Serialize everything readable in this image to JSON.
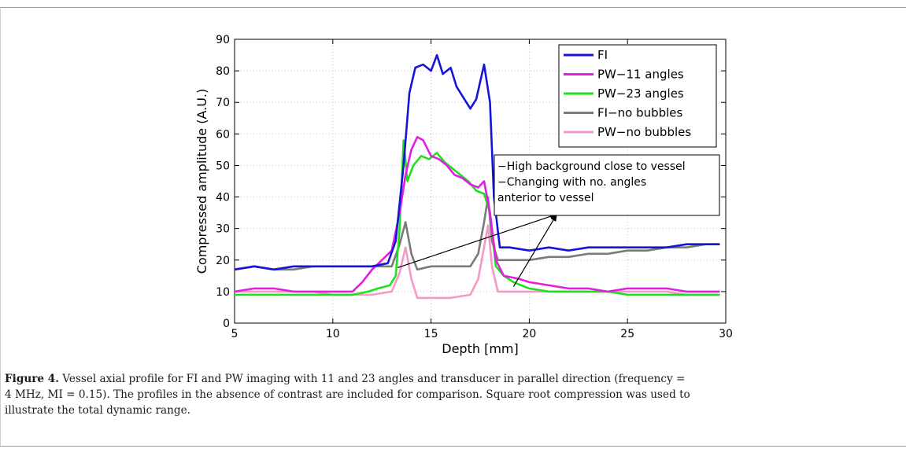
{
  "chart_data": {
    "type": "line",
    "xlabel": "Depth [mm]",
    "ylabel": "Compressed amplitude (A.U.)",
    "xlim": [
      5,
      30
    ],
    "ylim": [
      0,
      90
    ],
    "xticks": [
      5,
      10,
      15,
      20,
      25,
      30
    ],
    "yticks": [
      0,
      10,
      20,
      30,
      40,
      50,
      60,
      70,
      80,
      90
    ],
    "grid": "dotted",
    "legend_position": "top-right",
    "series": [
      {
        "name": "FI",
        "color": "#1515d8",
        "points": [
          [
            5,
            17
          ],
          [
            6,
            18
          ],
          [
            7,
            17
          ],
          [
            8,
            18
          ],
          [
            9,
            18
          ],
          [
            10,
            18
          ],
          [
            11,
            18
          ],
          [
            12,
            18
          ],
          [
            12.8,
            19
          ],
          [
            13.2,
            26
          ],
          [
            13.6,
            50
          ],
          [
            13.9,
            73
          ],
          [
            14.2,
            81
          ],
          [
            14.6,
            82
          ],
          [
            15.0,
            80
          ],
          [
            15.3,
            85
          ],
          [
            15.6,
            79
          ],
          [
            16.0,
            81
          ],
          [
            16.3,
            75
          ],
          [
            16.6,
            72
          ],
          [
            17.0,
            68
          ],
          [
            17.3,
            71
          ],
          [
            17.7,
            82
          ],
          [
            18.0,
            70
          ],
          [
            18.2,
            40
          ],
          [
            18.5,
            24
          ],
          [
            19,
            24
          ],
          [
            20,
            23
          ],
          [
            21,
            24
          ],
          [
            22,
            23
          ],
          [
            23,
            24
          ],
          [
            24,
            24
          ],
          [
            25,
            24
          ],
          [
            26,
            24
          ],
          [
            27,
            24
          ],
          [
            28,
            25
          ],
          [
            29,
            25
          ],
          [
            29.7,
            25
          ]
        ]
      },
      {
        "name": "PW−11 angles",
        "color": "#e11ee1",
        "points": [
          [
            5,
            10
          ],
          [
            6,
            11
          ],
          [
            7,
            11
          ],
          [
            8,
            10
          ],
          [
            9,
            10
          ],
          [
            10,
            10
          ],
          [
            11,
            10
          ],
          [
            11.5,
            13
          ],
          [
            12,
            17
          ],
          [
            12.5,
            20
          ],
          [
            13.0,
            23
          ],
          [
            13.4,
            35
          ],
          [
            13.7,
            47
          ],
          [
            14.0,
            55
          ],
          [
            14.3,
            59
          ],
          [
            14.6,
            58
          ],
          [
            15.0,
            53
          ],
          [
            15.4,
            52
          ],
          [
            15.8,
            50
          ],
          [
            16.2,
            47
          ],
          [
            16.6,
            46
          ],
          [
            17.0,
            44
          ],
          [
            17.4,
            43
          ],
          [
            17.7,
            45
          ],
          [
            18.0,
            35
          ],
          [
            18.3,
            20
          ],
          [
            18.7,
            15
          ],
          [
            19.5,
            14
          ],
          [
            20,
            13
          ],
          [
            21,
            12
          ],
          [
            22,
            11
          ],
          [
            23,
            11
          ],
          [
            24,
            10
          ],
          [
            25,
            11
          ],
          [
            26,
            11
          ],
          [
            27,
            11
          ],
          [
            28,
            10
          ],
          [
            29,
            10
          ],
          [
            29.7,
            10
          ]
        ]
      },
      {
        "name": "PW−23 angles",
        "color": "#1ee01e",
        "points": [
          [
            5,
            9
          ],
          [
            6,
            9
          ],
          [
            7,
            9
          ],
          [
            8,
            9
          ],
          [
            9,
            9
          ],
          [
            10,
            9
          ],
          [
            11,
            9
          ],
          [
            11.8,
            10
          ],
          [
            12.3,
            11
          ],
          [
            12.9,
            12
          ],
          [
            13.2,
            15
          ],
          [
            13.4,
            30
          ],
          [
            13.6,
            58
          ],
          [
            13.8,
            45
          ],
          [
            14.1,
            50
          ],
          [
            14.5,
            53
          ],
          [
            14.9,
            52
          ],
          [
            15.3,
            54
          ],
          [
            15.7,
            51
          ],
          [
            16.1,
            49
          ],
          [
            16.5,
            47
          ],
          [
            16.9,
            45
          ],
          [
            17.3,
            42
          ],
          [
            17.7,
            41
          ],
          [
            18.0,
            35
          ],
          [
            18.3,
            18
          ],
          [
            18.7,
            15
          ],
          [
            19.2,
            13
          ],
          [
            20,
            11
          ],
          [
            21,
            10
          ],
          [
            22,
            10
          ],
          [
            23,
            10
          ],
          [
            24,
            10
          ],
          [
            25,
            9
          ],
          [
            26,
            9
          ],
          [
            27,
            9
          ],
          [
            28,
            9
          ],
          [
            29,
            9
          ],
          [
            29.7,
            9
          ]
        ]
      },
      {
        "name": "FI−no bubbles",
        "color": "#7a7a7a",
        "points": [
          [
            5,
            17
          ],
          [
            6,
            18
          ],
          [
            7,
            17
          ],
          [
            8,
            17
          ],
          [
            9,
            18
          ],
          [
            10,
            18
          ],
          [
            11,
            18
          ],
          [
            12,
            18
          ],
          [
            13,
            18
          ],
          [
            13.4,
            25
          ],
          [
            13.7,
            32
          ],
          [
            14.0,
            22
          ],
          [
            14.3,
            17
          ],
          [
            15,
            18
          ],
          [
            16,
            18
          ],
          [
            17,
            18
          ],
          [
            17.4,
            22
          ],
          [
            17.7,
            32
          ],
          [
            17.9,
            40
          ],
          [
            18.1,
            26
          ],
          [
            18.4,
            20
          ],
          [
            19,
            20
          ],
          [
            20,
            20
          ],
          [
            21,
            21
          ],
          [
            22,
            21
          ],
          [
            23,
            22
          ],
          [
            24,
            22
          ],
          [
            25,
            23
          ],
          [
            26,
            23
          ],
          [
            27,
            24
          ],
          [
            28,
            24
          ],
          [
            29,
            25
          ],
          [
            29.7,
            25
          ]
        ]
      },
      {
        "name": "PW−no bubbles",
        "color": "#f29ac7",
        "points": [
          [
            5,
            10
          ],
          [
            6,
            10
          ],
          [
            7,
            10
          ],
          [
            8,
            10
          ],
          [
            9,
            10
          ],
          [
            10,
            9
          ],
          [
            11,
            9
          ],
          [
            12,
            9
          ],
          [
            13,
            10
          ],
          [
            13.4,
            16
          ],
          [
            13.7,
            24
          ],
          [
            14.0,
            14
          ],
          [
            14.3,
            8
          ],
          [
            15,
            8
          ],
          [
            16,
            8
          ],
          [
            17,
            9
          ],
          [
            17.4,
            14
          ],
          [
            17.7,
            24
          ],
          [
            17.9,
            31
          ],
          [
            18.1,
            18
          ],
          [
            18.4,
            10
          ],
          [
            19,
            10
          ],
          [
            20,
            10
          ],
          [
            21,
            10
          ],
          [
            22,
            10
          ],
          [
            23,
            10
          ],
          [
            24,
            10
          ],
          [
            25,
            10
          ],
          [
            26,
            10
          ],
          [
            27,
            10
          ],
          [
            28,
            9
          ],
          [
            29,
            9
          ],
          [
            29.7,
            9
          ]
        ]
      }
    ],
    "annotation": {
      "lines": [
        "−High background close to vessel",
        "−Changing with no. angles",
        "anterior to vessel"
      ],
      "arrow_tails": [
        [
          13.3,
          17.6
        ],
        [
          19.2,
          11.6
        ]
      ],
      "arrow_head": [
        21.4,
        34.5
      ]
    }
  },
  "caption": {
    "label": "Figure 4.",
    "line1": "Vessel axial profile for FI and PW imaging with 11 and 23 angles and transducer in parallel direction (frequency =",
    "line2": "4 MHz, MI = 0.15). The profiles in the absence of contrast are included for comparison. Square root compression was used to",
    "line3": "illustrate the total dynamic range."
  }
}
